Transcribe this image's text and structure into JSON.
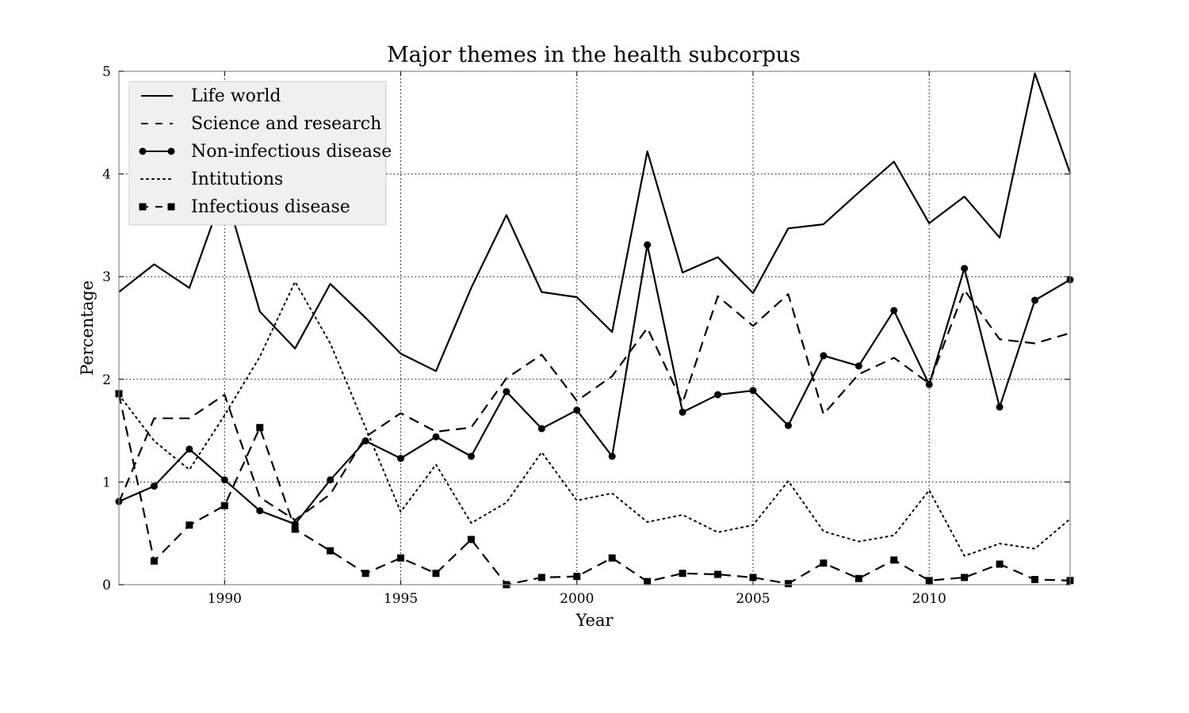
{
  "chart_data": {
    "type": "line",
    "title": "Major themes in the health subcorpus",
    "xlabel": "Year",
    "ylabel": "Percentage",
    "xlim": [
      1987,
      2014
    ],
    "ylim": [
      0,
      5
    ],
    "xticks": [
      1990,
      1995,
      2000,
      2005,
      2010
    ],
    "yticks": [
      0,
      1,
      2,
      3,
      4,
      5
    ],
    "grid": true,
    "legend_position": "top-left",
    "x": [
      1987,
      1988,
      1989,
      1990,
      1991,
      1992,
      1993,
      1994,
      1995,
      1996,
      1997,
      1998,
      1999,
      2000,
      2001,
      2002,
      2003,
      2004,
      2005,
      2006,
      2007,
      2008,
      2009,
      2010,
      2011,
      2012,
      2013,
      2014
    ],
    "series": [
      {
        "name": "Life world",
        "style": "solid",
        "marker": "none",
        "values": [
          2.85,
          3.12,
          2.89,
          3.85,
          2.66,
          2.3,
          2.93,
          2.6,
          2.25,
          2.08,
          2.89,
          3.6,
          2.85,
          2.8,
          2.46,
          4.22,
          3.04,
          3.19,
          2.84,
          3.47,
          3.51,
          3.82,
          4.12,
          3.52,
          3.78,
          3.38,
          4.98,
          4.01
        ]
      },
      {
        "name": "Science and research",
        "style": "dashed",
        "marker": "none",
        "values": [
          0.8,
          1.62,
          1.62,
          1.85,
          0.85,
          0.63,
          0.88,
          1.44,
          1.67,
          1.49,
          1.53,
          2.01,
          2.24,
          1.79,
          2.03,
          2.5,
          1.77,
          2.81,
          2.52,
          2.83,
          1.66,
          2.05,
          2.21,
          1.96,
          2.87,
          2.39,
          2.35,
          2.45
        ]
      },
      {
        "name": "Non-infectious disease",
        "style": "solid",
        "marker": "circle",
        "values": [
          0.81,
          0.96,
          1.32,
          1.02,
          0.72,
          0.59,
          1.02,
          1.4,
          1.23,
          1.44,
          1.25,
          1.88,
          1.52,
          1.7,
          1.25,
          3.31,
          1.68,
          1.85,
          1.89,
          1.55,
          2.23,
          2.13,
          2.67,
          1.95,
          3.08,
          1.73,
          2.77,
          2.97
        ]
      },
      {
        "name": "Intitutions",
        "style": "dotted",
        "marker": "none",
        "values": [
          1.85,
          1.4,
          1.12,
          1.65,
          2.22,
          2.95,
          2.35,
          1.53,
          0.71,
          1.17,
          0.6,
          0.8,
          1.29,
          0.82,
          0.89,
          0.61,
          0.68,
          0.51,
          0.58,
          1.01,
          0.52,
          0.42,
          0.48,
          0.92,
          0.28,
          0.4,
          0.35,
          0.64
        ]
      },
      {
        "name": "Infectious disease",
        "style": "dashed",
        "marker": "square",
        "values": [
          1.86,
          0.23,
          0.58,
          0.77,
          1.53,
          0.54,
          0.33,
          0.11,
          0.26,
          0.11,
          0.44,
          0.0,
          0.07,
          0.08,
          0.26,
          0.03,
          0.11,
          0.1,
          0.07,
          0.01,
          0.21,
          0.06,
          0.24,
          0.04,
          0.07,
          0.2,
          0.05,
          0.04
        ]
      }
    ]
  }
}
